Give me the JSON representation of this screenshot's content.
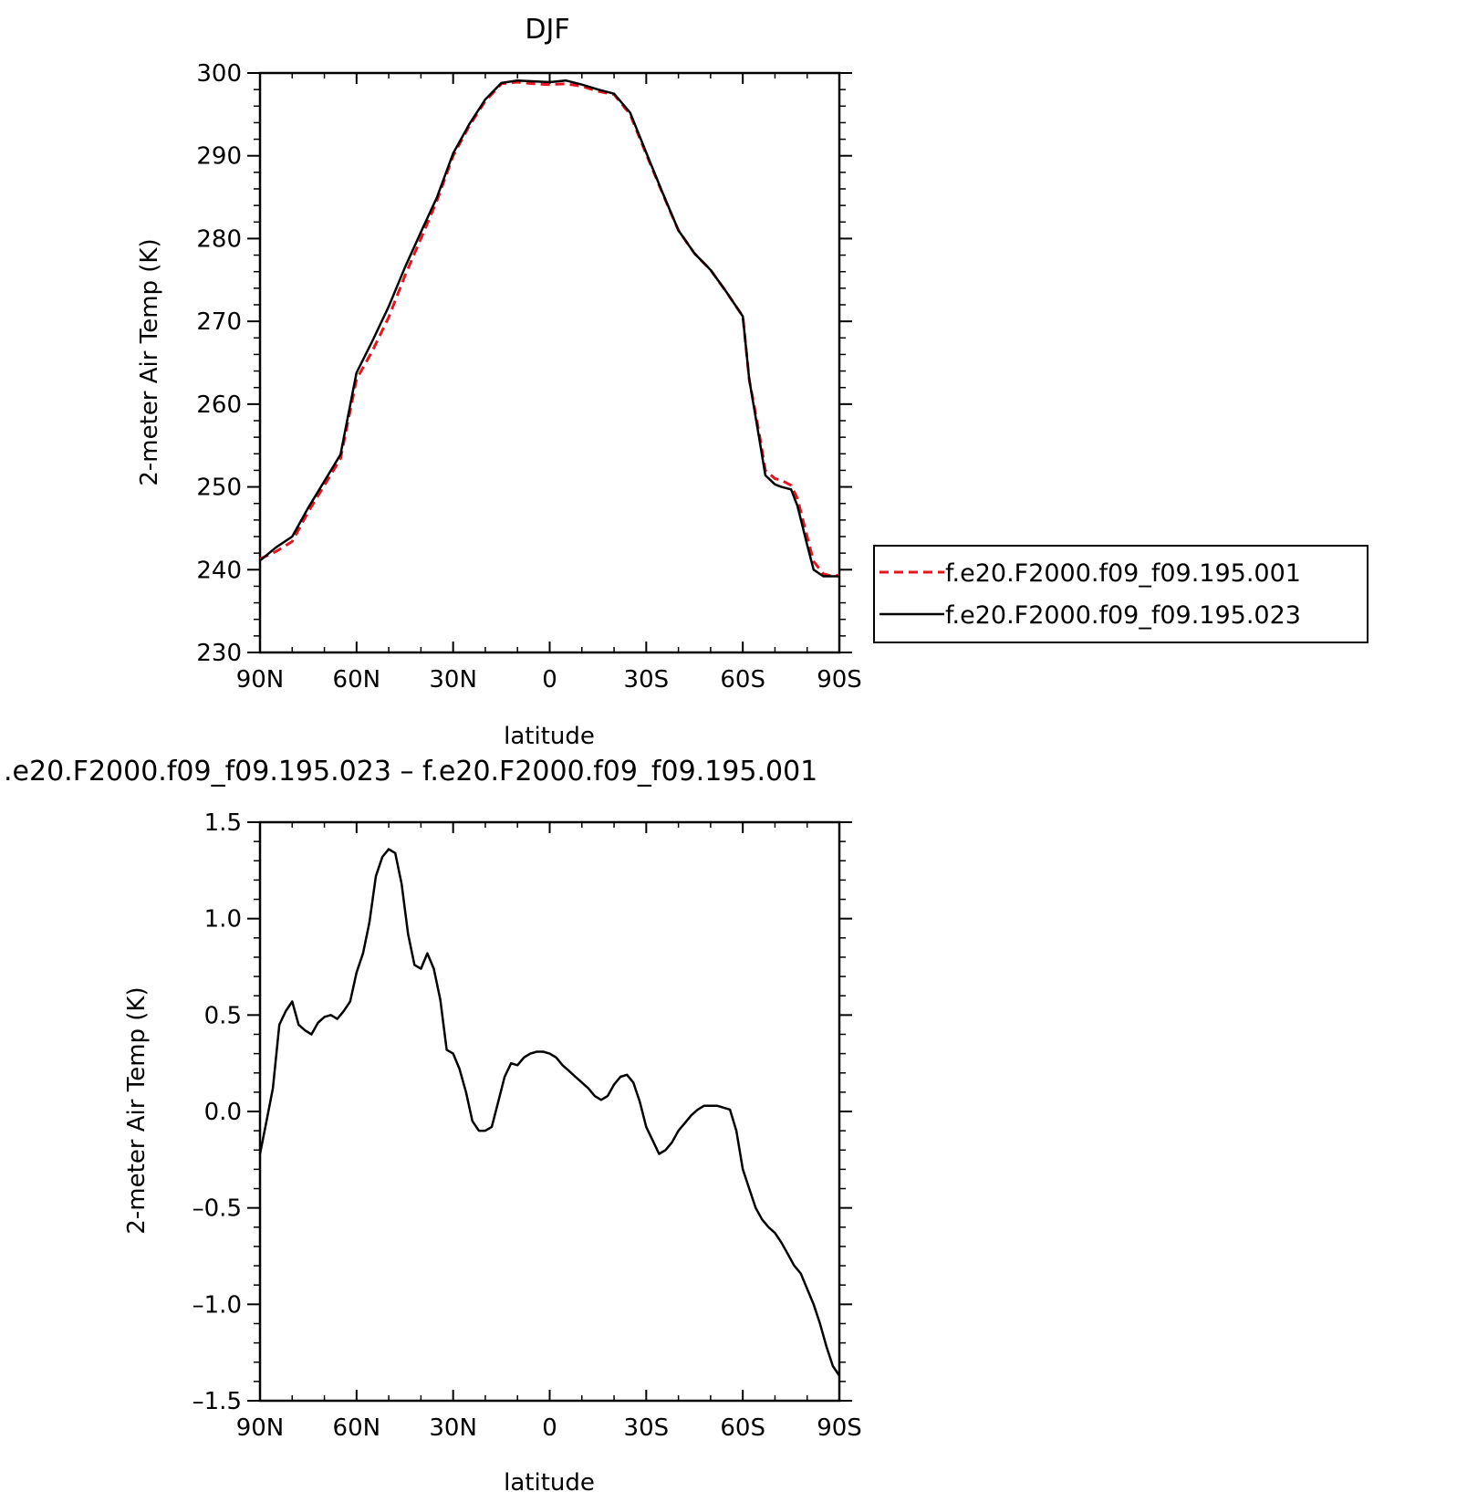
{
  "chart_data": [
    {
      "type": "line",
      "title": "DJF",
      "xlabel": "latitude",
      "ylabel": "2-meter Air Temp (K)",
      "xlim": [
        90,
        -90
      ],
      "ylim": [
        230,
        300
      ],
      "xticks": [
        90,
        60,
        30,
        0,
        -30,
        -60,
        -90
      ],
      "xtick_labels": [
        "90N",
        "60N",
        "30N",
        "0",
        "30S",
        "60S",
        "90S"
      ],
      "yticks": [
        230,
        240,
        250,
        260,
        270,
        280,
        290,
        300
      ],
      "ytick_labels": [
        "230",
        "240",
        "250",
        "260",
        "270",
        "280",
        "290",
        "300"
      ],
      "legend": "right",
      "x": [
        90,
        85,
        80,
        75,
        70,
        65,
        60,
        55,
        50,
        45,
        40,
        35,
        30,
        25,
        20,
        15,
        10,
        5,
        0,
        -5,
        -10,
        -15,
        -20,
        -25,
        -30,
        -35,
        -40,
        -45,
        -50,
        -55,
        -60,
        -62,
        -65,
        -67,
        -70,
        -72,
        -75,
        -77,
        -80,
        -82,
        -85,
        -87,
        -90
      ],
      "series": [
        {
          "name": "f.e20.F2000.f09_f09.195.001",
          "color": "#e8141e",
          "dash": "dashed",
          "values": [
            241.3,
            242.2,
            243.4,
            247.0,
            250.2,
            253.4,
            263.0,
            266.5,
            270.5,
            275.5,
            280.0,
            284.6,
            290.0,
            293.6,
            296.6,
            298.7,
            298.9,
            298.7,
            298.6,
            298.7,
            298.4,
            297.8,
            297.4,
            295.0,
            290.2,
            285.5,
            281.0,
            278.2,
            276.2,
            273.5,
            270.6,
            263.0,
            256.7,
            252.0,
            251.0,
            250.8,
            250.2,
            248.6,
            244.0,
            241.0,
            239.5,
            239.3,
            239.3
          ]
        },
        {
          "name": "f.e20.F2000.f09_f09.195.023",
          "color": "#000000",
          "dash": "solid",
          "values": [
            241.1,
            242.7,
            244.0,
            247.5,
            250.7,
            253.9,
            263.8,
            267.7,
            271.8,
            276.5,
            280.8,
            285.0,
            290.3,
            293.8,
            296.8,
            298.8,
            299.1,
            299.0,
            298.9,
            299.1,
            298.6,
            298.0,
            297.5,
            295.2,
            290.4,
            285.6,
            281.0,
            278.2,
            276.2,
            273.5,
            270.6,
            263.0,
            256.1,
            251.4,
            250.3,
            250.0,
            249.7,
            247.7,
            243.0,
            240.0,
            239.2,
            239.2,
            239.2
          ]
        }
      ]
    },
    {
      "type": "line",
      "title": ".e20.F2000.f09_f09.195.023 – f.e20.F2000.f09_f09.195.001",
      "xlabel": "latitude",
      "ylabel": "2-meter Air Temp (K)",
      "xlim": [
        90,
        -90
      ],
      "ylim": [
        -1.5,
        1.5
      ],
      "xticks": [
        90,
        60,
        30,
        0,
        -30,
        -60,
        -90
      ],
      "xtick_labels": [
        "90N",
        "60N",
        "30N",
        "0",
        "30S",
        "60S",
        "90S"
      ],
      "yticks": [
        1.5,
        1.0,
        0.5,
        0.0,
        -0.5,
        -1.0,
        -1.5
      ],
      "ytick_labels": [
        "1.5",
        "1.0",
        "0.5",
        "0.0",
        "–0.5",
        "–1.0",
        "–1.5"
      ],
      "x": [
        90,
        88,
        86,
        84,
        82,
        80,
        78,
        76,
        74,
        72,
        70,
        68,
        66,
        64,
        62,
        60,
        58,
        56,
        54,
        52,
        50,
        48,
        46,
        44,
        42,
        40,
        38,
        36,
        34,
        32,
        30,
        28,
        26,
        24,
        22,
        20,
        18,
        16,
        14,
        12,
        10,
        8,
        6,
        4,
        2,
        0,
        -2,
        -4,
        -6,
        -8,
        -10,
        -12,
        -14,
        -16,
        -18,
        -20,
        -22,
        -24,
        -26,
        -28,
        -30,
        -32,
        -34,
        -36,
        -38,
        -40,
        -42,
        -44,
        -46,
        -48,
        -50,
        -52,
        -54,
        -56,
        -58,
        -60,
        -62,
        -64,
        -66,
        -68,
        -70,
        -72,
        -74,
        -76,
        -78,
        -80,
        -82,
        -84,
        -86,
        -88,
        -90
      ],
      "series": [
        {
          "name": "",
          "color": "#000000",
          "dash": "solid",
          "values": [
            -0.22,
            -0.05,
            0.12,
            0.45,
            0.52,
            0.57,
            0.45,
            0.42,
            0.4,
            0.46,
            0.49,
            0.5,
            0.48,
            0.52,
            0.57,
            0.72,
            0.82,
            0.98,
            1.22,
            1.32,
            1.36,
            1.34,
            1.18,
            0.92,
            0.76,
            0.74,
            0.82,
            0.74,
            0.58,
            0.32,
            0.3,
            0.22,
            0.1,
            -0.05,
            -0.1,
            -0.1,
            -0.08,
            0.05,
            0.18,
            0.25,
            0.24,
            0.28,
            0.3,
            0.31,
            0.31,
            0.3,
            0.28,
            0.24,
            0.21,
            0.18,
            0.15,
            0.12,
            0.08,
            0.06,
            0.08,
            0.14,
            0.18,
            0.19,
            0.15,
            0.05,
            -0.08,
            -0.15,
            -0.22,
            -0.2,
            -0.16,
            -0.1,
            -0.06,
            -0.02,
            0.01,
            0.03,
            0.03,
            0.03,
            0.02,
            0.01,
            -0.1,
            -0.3,
            -0.4,
            -0.5,
            -0.56,
            -0.6,
            -0.63,
            -0.68,
            -0.74,
            -0.8,
            -0.84,
            -0.92,
            -1.0,
            -1.1,
            -1.22,
            -1.32,
            -1.37
          ]
        }
      ]
    }
  ]
}
